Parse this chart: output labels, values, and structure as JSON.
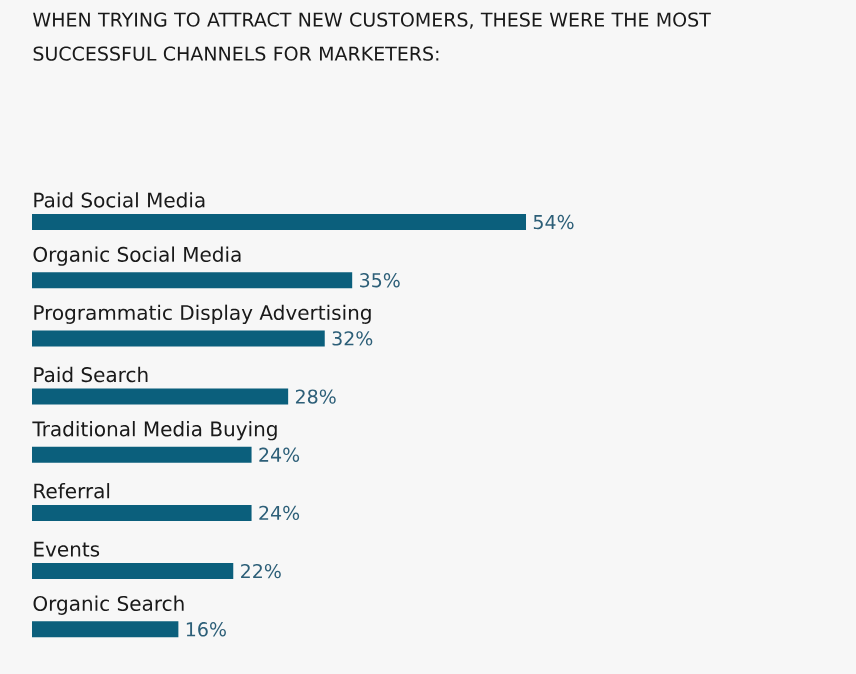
{
  "chart_data": {
    "type": "bar",
    "orientation": "horizontal",
    "title": "WHEN TRYING TO ATTRACT NEW CUSTOMERS, THESE WERE THE MOST SUCCESSFUL CHANNELS FOR MARKETERS:",
    "categories": [
      "Paid Social Media",
      "Organic Social Media",
      "Programmatic Display Advertising",
      "Paid Search",
      "Traditional Media Buying",
      "Referral",
      "Events",
      "Organic Search"
    ],
    "values": [
      54,
      35,
      32,
      28,
      24,
      24,
      22,
      16
    ],
    "value_labels": [
      "54%",
      "35%",
      "32%",
      "28%",
      "24%",
      "24%",
      "22%",
      "16%"
    ],
    "color": "#0b5f7c"
  }
}
